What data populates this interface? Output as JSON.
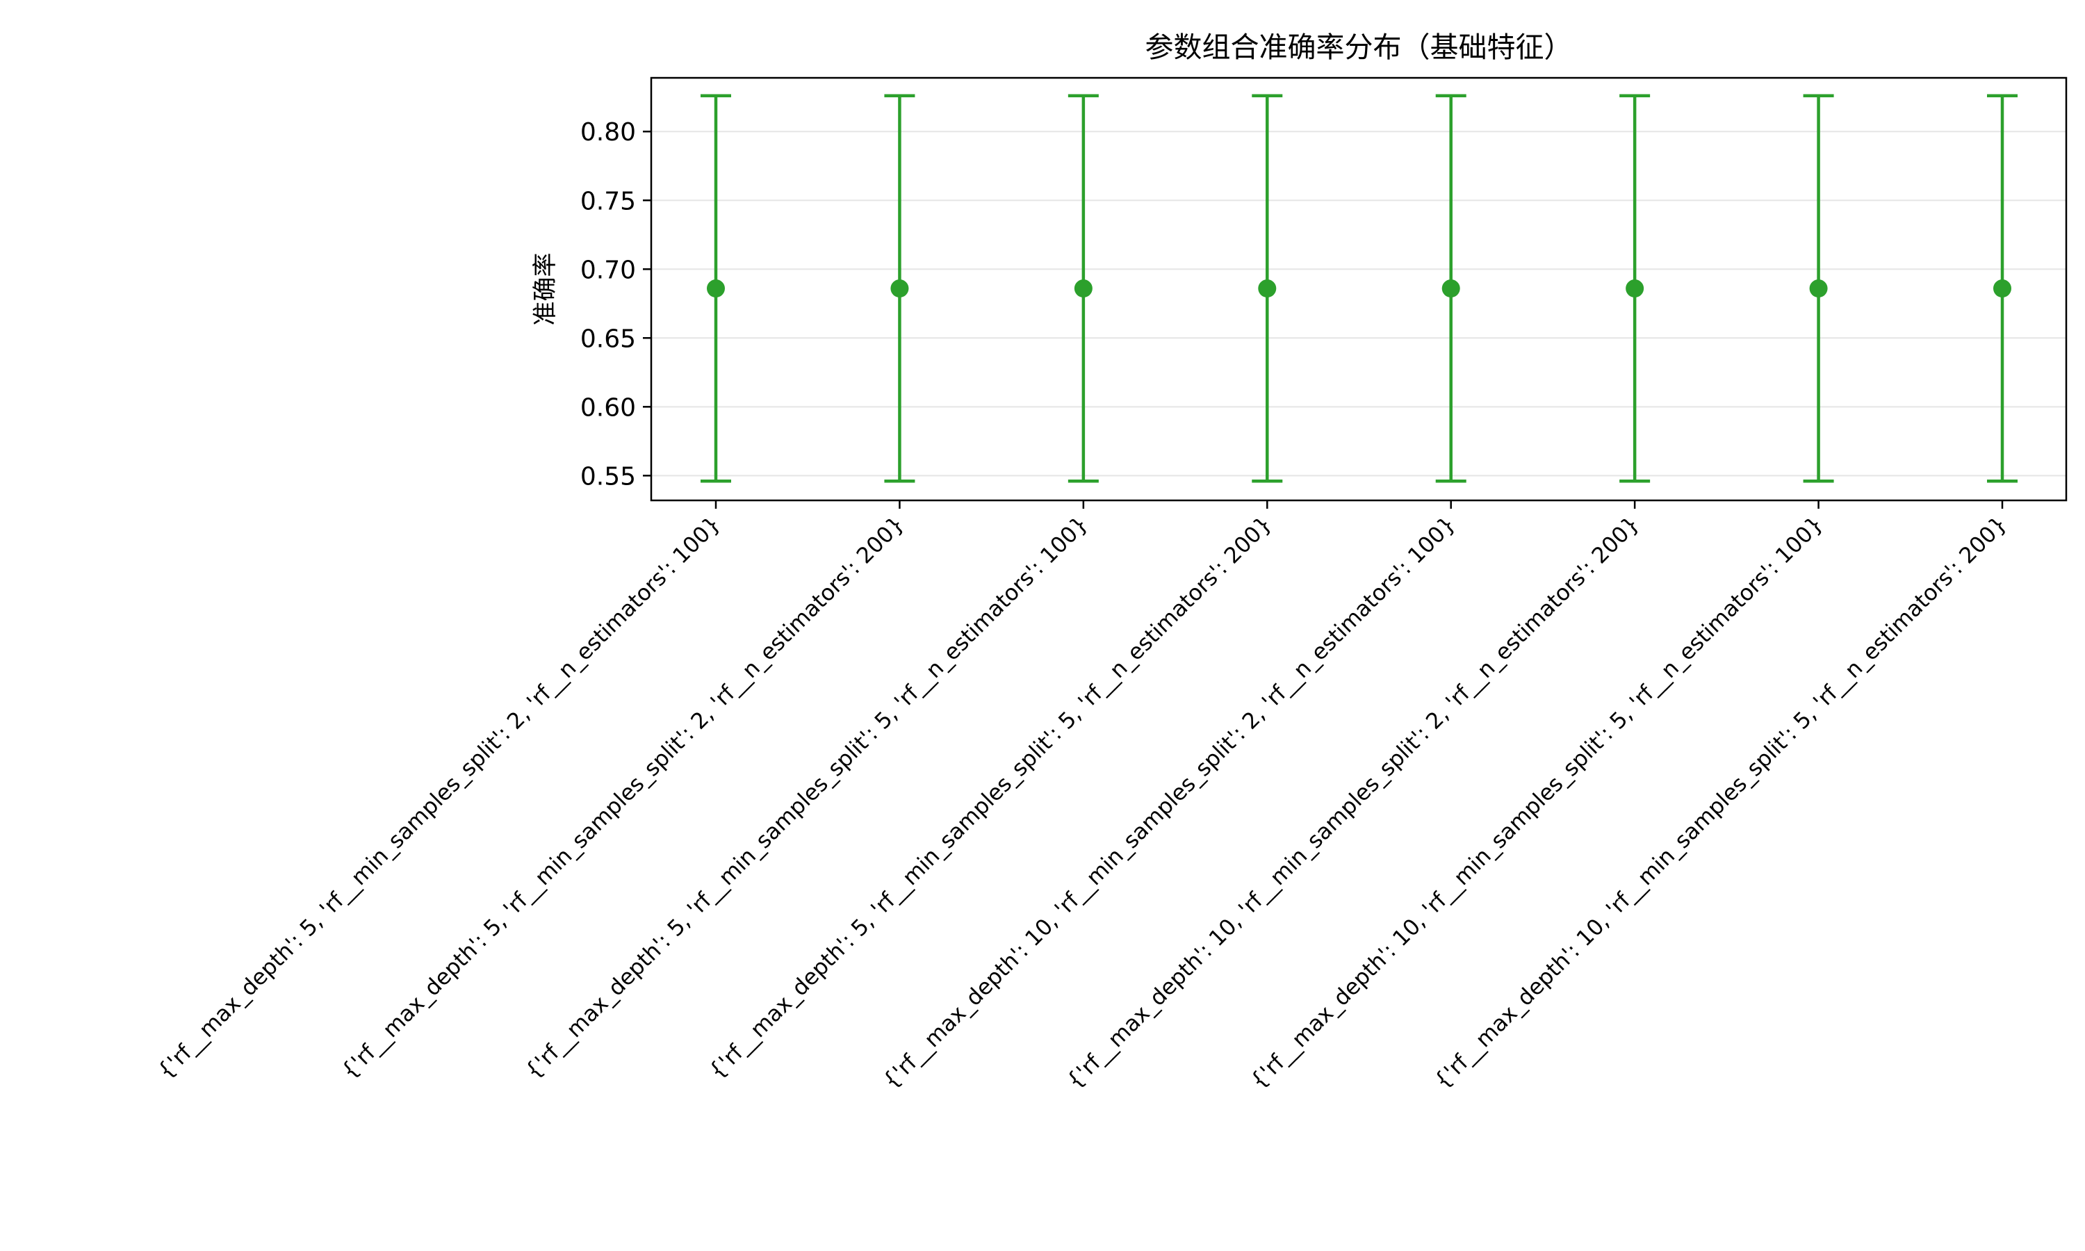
{
  "chart_data": {
    "type": "errorbar",
    "title": "参数组合准确率分布（基础特征）",
    "xlabel": "",
    "ylabel": "准确率",
    "ylim": [
      0.532,
      0.839
    ],
    "yticks": [
      0.55,
      0.6,
      0.65,
      0.7,
      0.75,
      0.8
    ],
    "ytick_labels": [
      "0.55",
      "0.60",
      "0.65",
      "0.70",
      "0.75",
      "0.80"
    ],
    "grid": true,
    "legend": "none",
    "color": "#2ca02c",
    "categories": [
      "{'rf__max_depth': 5, 'rf__min_samples_split': 2, 'rf__n_estimators': 100}",
      "{'rf__max_depth': 5, 'rf__min_samples_split': 2, 'rf__n_estimators': 200}",
      "{'rf__max_depth': 5, 'rf__min_samples_split': 5, 'rf__n_estimators': 100}",
      "{'rf__max_depth': 5, 'rf__min_samples_split': 5, 'rf__n_estimators': 200}",
      "{'rf__max_depth': 10, 'rf__min_samples_split': 2, 'rf__n_estimators': 100}",
      "{'rf__max_depth': 10, 'rf__min_samples_split': 2, 'rf__n_estimators': 200}",
      "{'rf__max_depth': 10, 'rf__min_samples_split': 5, 'rf__n_estimators': 100}",
      "{'rf__max_depth': 10, 'rf__min_samples_split': 5, 'rf__n_estimators': 200}"
    ],
    "series": [
      {
        "values": [
          0.686,
          0.686,
          0.686,
          0.686,
          0.686,
          0.686,
          0.686,
          0.686
        ],
        "error_low": [
          0.546,
          0.546,
          0.546,
          0.546,
          0.546,
          0.546,
          0.546,
          0.546
        ],
        "error_high": [
          0.826,
          0.826,
          0.826,
          0.826,
          0.826,
          0.826,
          0.826,
          0.826
        ]
      }
    ]
  }
}
